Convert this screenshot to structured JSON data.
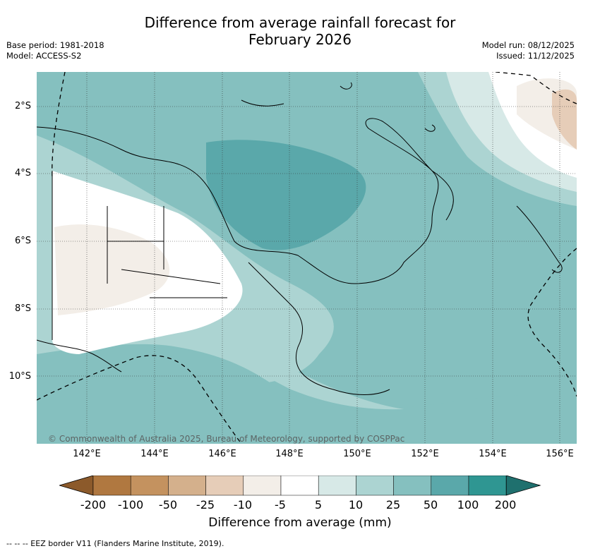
{
  "header": {
    "title_line1": "Difference from average rainfall forecast for",
    "title_line2": "February 2026",
    "base_period": "Base period: 1981-2018",
    "model": "Model: ACCESS-S2",
    "model_run": "Model run: 08/12/2025",
    "issued": "Issued: 11/12/2025"
  },
  "axes": {
    "lat_labels": [
      "2°S",
      "4°S",
      "6°S",
      "8°S",
      "10°S"
    ],
    "lon_labels": [
      "142°E",
      "144°E",
      "146°E",
      "148°E",
      "150°E",
      "152°E",
      "154°E",
      "156°E"
    ]
  },
  "map": {
    "copyright": "© Commonwealth of Australia 2025, Bureau of Meteorology, supported by COSPPac"
  },
  "colorbar": {
    "title": "Difference from average (mm)",
    "tick_labels": [
      "-200",
      "-100",
      "-50",
      "-25",
      "-10",
      "-5",
      "5",
      "10",
      "25",
      "50",
      "100",
      "200"
    ],
    "colors": [
      "#8c5a2b",
      "#b07840",
      "#c4925f",
      "#d4b08c",
      "#e6cdb8",
      "#f3eee8",
      "#ffffff",
      "#d7e9e7",
      "#acd4d2",
      "#85c0bf",
      "#5aa8aa",
      "#2f9692",
      "#1f706e"
    ]
  },
  "footer": {
    "legend": "--  --  -- EEZ border V11 (Flanders Marine Institute, 2019)."
  }
}
